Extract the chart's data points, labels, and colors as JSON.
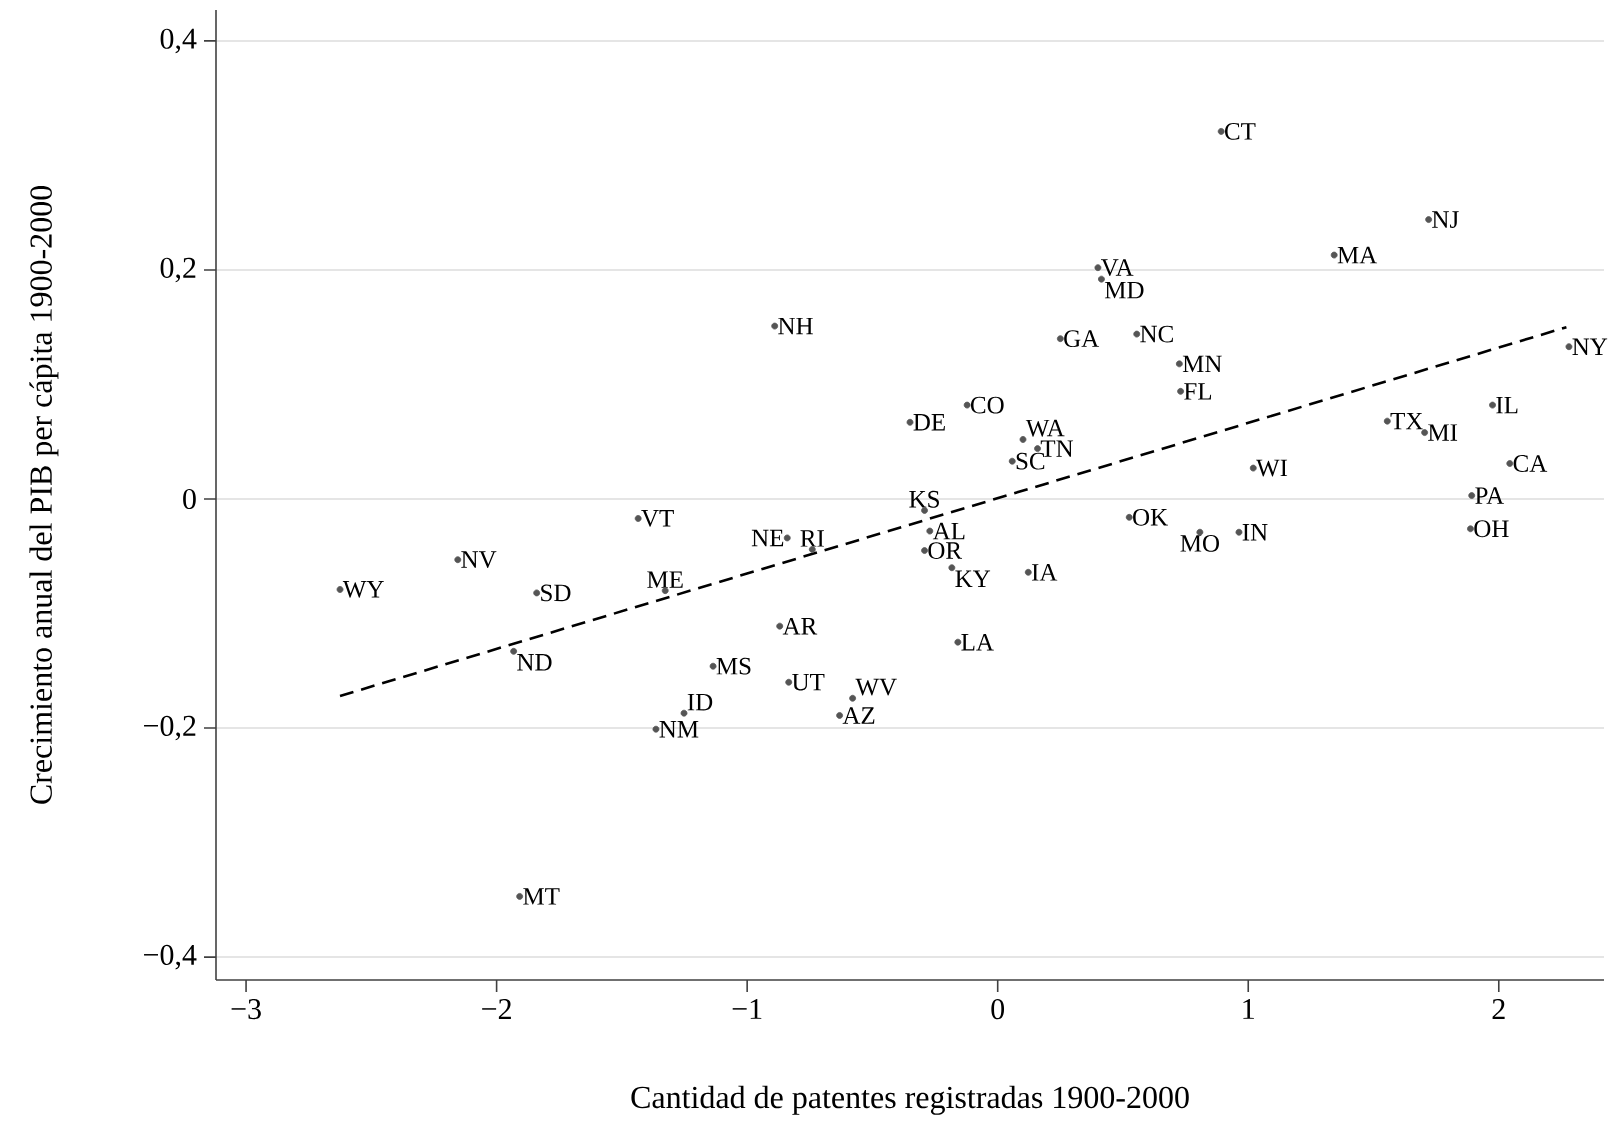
{
  "chart_data": {
    "type": "scatter",
    "xlabel": "Cantidad de patentes registradas 1900-2000",
    "ylabel": "Crecimiento anual del PIB per cápita 1900-2000",
    "xlim": [
      -3.12,
      2.42
    ],
    "ylim": [
      -0.42,
      0.427
    ],
    "xticks": [
      {
        "value": -3,
        "label": "−3"
      },
      {
        "value": -2,
        "label": "−2"
      },
      {
        "value": -1,
        "label": "−1"
      },
      0,
      1,
      2
    ],
    "yticks": [
      {
        "value": -0.4,
        "label": "−0,4"
      },
      {
        "value": -0.2,
        "label": "−0,2"
      },
      0,
      {
        "value": 0.2,
        "label": "0,2"
      },
      {
        "value": 0.4,
        "label": "0,4"
      }
    ],
    "grid": "y",
    "series": [
      {
        "color": "#555555",
        "marker": "circle",
        "x": [
          -2.625,
          -2.155,
          -1.84,
          -1.932,
          -1.908,
          -1.435,
          -1.327,
          -1.364,
          -1.252,
          -1.136,
          -0.89,
          -0.84,
          -0.74,
          -0.87,
          -0.834,
          -0.579,
          -0.631,
          -0.35,
          -0.122,
          -0.292,
          -0.271,
          -0.292,
          -0.183,
          -0.159,
          0.122,
          0.101,
          0.159,
          0.058,
          0.25,
          0.4,
          0.414,
          0.555,
          0.525,
          0.725,
          0.73,
          0.807,
          0.892,
          0.963,
          1.02,
          1.343,
          1.555,
          1.704,
          1.72,
          1.892,
          1.887,
          1.975,
          2.044,
          2.28
        ],
        "values": [
          -0.079,
          -0.053,
          -0.082,
          -0.133,
          -0.347,
          -0.017,
          -0.08,
          -0.201,
          -0.187,
          -0.146,
          0.151,
          -0.034,
          -0.044,
          -0.111,
          -0.16,
          -0.174,
          -0.189,
          0.067,
          0.082,
          -0.01,
          -0.028,
          -0.045,
          -0.06,
          -0.125,
          -0.064,
          0.052,
          0.044,
          0.033,
          0.14,
          0.202,
          0.192,
          0.144,
          -0.016,
          0.118,
          0.094,
          -0.029,
          0.321,
          -0.029,
          0.027,
          0.213,
          0.068,
          0.058,
          0.244,
          0.003,
          -0.026,
          0.082,
          0.031,
          0.133
        ]
      },
      {
        "type": "line",
        "color": "#000000",
        "line_style": "dashed",
        "x": [
          -2.625,
          2.27
        ],
        "values": [
          -0.172,
          0.15
        ]
      }
    ],
    "annotations": [
      {
        "text": "WY",
        "x": -2.625,
        "y": -0.079
      },
      {
        "text": "NV",
        "x": -2.155,
        "y": -0.053
      },
      {
        "text": "SD",
        "x": -1.84,
        "y": -0.082
      },
      {
        "text": "ND",
        "x": -1.932,
        "y": -0.133
      },
      {
        "text": "MT",
        "x": -1.908,
        "y": -0.347
      },
      {
        "text": "VT",
        "x": -1.435,
        "y": -0.017
      },
      {
        "text": "ME",
        "x": -1.327,
        "y": -0.08
      },
      {
        "text": "NM",
        "x": -1.364,
        "y": -0.201
      },
      {
        "text": "ID",
        "x": -1.252,
        "y": -0.187
      },
      {
        "text": "MS",
        "x": -1.136,
        "y": -0.146
      },
      {
        "text": "NH",
        "x": -0.89,
        "y": 0.151
      },
      {
        "text": "NE",
        "x": -0.84,
        "y": -0.034
      },
      {
        "text": "RI",
        "x": -0.74,
        "y": -0.044
      },
      {
        "text": "AR",
        "x": -0.87,
        "y": -0.111
      },
      {
        "text": "UT",
        "x": -0.834,
        "y": -0.16
      },
      {
        "text": "WV",
        "x": -0.579,
        "y": -0.174
      },
      {
        "text": "AZ",
        "x": -0.631,
        "y": -0.189
      },
      {
        "text": "DE",
        "x": -0.35,
        "y": 0.067
      },
      {
        "text": "CO",
        "x": -0.122,
        "y": 0.082
      },
      {
        "text": "KS",
        "x": -0.292,
        "y": -0.01
      },
      {
        "text": "AL",
        "x": -0.271,
        "y": -0.028
      },
      {
        "text": "OR",
        "x": -0.292,
        "y": -0.045
      },
      {
        "text": "KY",
        "x": -0.183,
        "y": -0.06
      },
      {
        "text": "LA",
        "x": -0.159,
        "y": -0.125
      },
      {
        "text": "IA",
        "x": 0.122,
        "y": -0.064
      },
      {
        "text": "WA",
        "x": 0.101,
        "y": 0.052
      },
      {
        "text": "TN",
        "x": 0.159,
        "y": 0.044
      },
      {
        "text": "SC",
        "x": 0.058,
        "y": 0.033
      },
      {
        "text": "GA",
        "x": 0.25,
        "y": 0.14
      },
      {
        "text": "VA",
        "x": 0.4,
        "y": 0.202
      },
      {
        "text": "MD",
        "x": 0.414,
        "y": 0.192
      },
      {
        "text": "NC",
        "x": 0.555,
        "y": 0.144
      },
      {
        "text": "OK",
        "x": 0.525,
        "y": -0.016
      },
      {
        "text": "MN",
        "x": 0.725,
        "y": 0.118
      },
      {
        "text": "FL",
        "x": 0.73,
        "y": 0.094
      },
      {
        "text": "MO",
        "x": 0.807,
        "y": -0.029
      },
      {
        "text": "CT",
        "x": 0.892,
        "y": 0.321
      },
      {
        "text": "IN",
        "x": 0.963,
        "y": -0.029
      },
      {
        "text": "WI",
        "x": 1.02,
        "y": 0.027
      },
      {
        "text": "MA",
        "x": 1.343,
        "y": 0.213
      },
      {
        "text": "TX",
        "x": 1.555,
        "y": 0.068
      },
      {
        "text": "MI",
        "x": 1.704,
        "y": 0.058
      },
      {
        "text": "NJ",
        "x": 1.72,
        "y": 0.244
      },
      {
        "text": "PA",
        "x": 1.892,
        "y": 0.003
      },
      {
        "text": "OH",
        "x": 1.887,
        "y": -0.026
      },
      {
        "text": "IL",
        "x": 1.975,
        "y": 0.082
      },
      {
        "text": "CA",
        "x": 2.044,
        "y": 0.031
      },
      {
        "text": "NY",
        "x": 2.28,
        "y": 0.133
      }
    ]
  }
}
